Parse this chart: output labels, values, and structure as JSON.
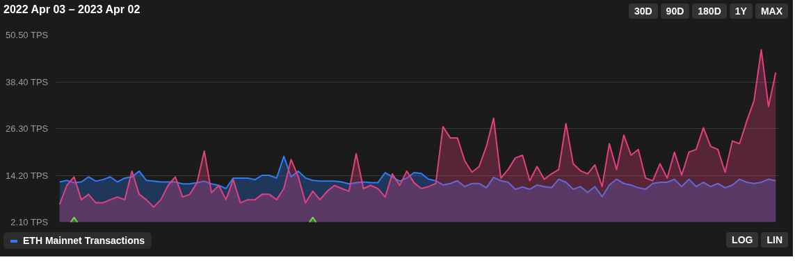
{
  "chart_data": {
    "type": "area",
    "title": "2022 Apr 03 – 2023 Apr 02",
    "categories": [
      null,
      null,
      null,
      null,
      null,
      null,
      null,
      null,
      null,
      null,
      null,
      null,
      null,
      null,
      null,
      null,
      null,
      null,
      null,
      null,
      null,
      null,
      null,
      null,
      null,
      null,
      null,
      null,
      null,
      null,
      null,
      null,
      null,
      null,
      null,
      null,
      null,
      null,
      null,
      null,
      null,
      null,
      null,
      null,
      null,
      null,
      null,
      null,
      null,
      null,
      null,
      null,
      null,
      null,
      null,
      null,
      null,
      null,
      null,
      null,
      null,
      null,
      null,
      null,
      null,
      null,
      null,
      null,
      null,
      null,
      null,
      null,
      null,
      null,
      null,
      null,
      null,
      null,
      null,
      null,
      null,
      null,
      null,
      null,
      null,
      null,
      null,
      null,
      null,
      null,
      null,
      null,
      null,
      null,
      null,
      null,
      null,
      null,
      null,
      null
    ],
    "series": [
      {
        "color": "#2f7cf6",
        "name": "ETH Mainnet Transactions",
        "values": [
          12.5,
          12.9,
          12.3,
          12.5,
          13.8,
          12.7,
          13.1,
          13.8,
          12.5,
          13.5,
          13.8,
          15.3,
          12.9,
          12.7,
          12.5,
          12.5,
          12.5,
          12.0,
          12.0,
          12.3,
          12.7,
          12.0,
          11.6,
          10.8,
          13.5,
          13.5,
          13.5,
          13.1,
          14.2,
          14.2,
          13.5,
          19.1,
          13.8,
          15.3,
          13.5,
          12.9,
          12.7,
          12.7,
          12.7,
          12.5,
          12.0,
          12.3,
          12.5,
          12.3,
          12.3,
          14.9,
          13.8,
          12.7,
          13.5,
          14.9,
          14.7,
          13.2,
          12.8,
          11.7,
          12.1,
          12.8,
          11.3,
          12.1,
          12.1,
          11.0,
          13.7,
          12.8,
          12.4,
          10.6,
          11.2,
          10.6,
          11.7,
          11.3,
          11.0,
          13.2,
          12.4,
          10.6,
          11.3,
          9.8,
          11.3,
          8.7,
          11.7,
          13.2,
          12.1,
          11.7,
          11.0,
          10.6,
          12.1,
          12.4,
          12.4,
          13.2,
          11.3,
          13.2,
          11.3,
          12.4,
          11.3,
          12.1,
          11.0,
          11.7,
          13.2,
          12.4,
          12.1,
          12.4,
          13.2,
          12.8
        ]
      },
      {
        "color": "#e2407e",
        "values": [
          6.7,
          11.6,
          13.8,
          7.9,
          9.3,
          7.1,
          7.1,
          7.9,
          8.6,
          7.9,
          15.3,
          9.3,
          7.9,
          6.0,
          7.9,
          11.6,
          13.8,
          8.6,
          9.3,
          12.3,
          20.5,
          9.7,
          11.6,
          7.9,
          13.1,
          7.1,
          7.9,
          7.9,
          9.3,
          9.3,
          7.9,
          10.8,
          18.3,
          13.8,
          7.1,
          10.1,
          7.9,
          10.1,
          11.6,
          10.8,
          10.1,
          19.8,
          10.8,
          11.6,
          10.8,
          8.6,
          14.6,
          11.6,
          15.3,
          12.3,
          10.8,
          11.3,
          12.1,
          26.8,
          23.9,
          23.9,
          18.0,
          15.0,
          16.5,
          21.7,
          29.0,
          13.5,
          15.7,
          18.7,
          19.4,
          12.8,
          16.5,
          13.2,
          14.6,
          15.7,
          27.6,
          17.2,
          15.4,
          14.6,
          16.9,
          11.3,
          22.4,
          15.7,
          24.6,
          19.4,
          20.9,
          13.5,
          12.8,
          17.2,
          13.5,
          20.2,
          14.3,
          20.2,
          20.9,
          26.5,
          21.7,
          20.9,
          15.0,
          23.1,
          22.4,
          28.3,
          33.5,
          46.7,
          32.0,
          40.8
        ]
      },
      {
        "type": "scatter",
        "color": "#6fd64a",
        "marker": "diamond",
        "values": [
          null,
          null,
          2.1,
          null,
          null,
          null,
          null,
          null,
          null,
          null,
          null,
          null,
          null,
          null,
          null,
          null,
          null,
          null,
          null,
          null,
          null,
          null,
          null,
          null,
          null,
          null,
          null,
          null,
          null,
          null,
          null,
          null,
          null,
          null,
          null,
          2.1,
          null,
          null,
          null,
          null,
          null,
          null,
          null,
          null,
          null,
          null,
          null,
          null,
          null,
          null,
          null,
          null,
          null,
          null,
          null,
          null,
          null,
          null,
          null,
          null,
          null,
          null,
          null,
          null,
          null,
          null,
          null,
          null,
          null,
          null,
          null,
          null,
          null,
          null,
          null,
          null,
          null,
          null,
          null,
          null,
          null,
          null,
          null,
          null,
          null,
          null,
          null,
          null,
          null,
          null,
          null,
          null,
          null,
          null,
          null,
          null,
          null,
          null,
          null,
          null
        ]
      }
    ],
    "ylim": [
      2.1,
      50.5
    ],
    "yticks": [
      {
        "value": 2.1,
        "label": "2.10 TPS"
      },
      {
        "value": 14.2,
        "label": "14.20 TPS"
      },
      {
        "value": 26.3,
        "label": "26.30 TPS"
      },
      {
        "value": 38.4,
        "label": "38.40 TPS"
      },
      {
        "value": 50.5,
        "label": "50.50 TPS"
      }
    ],
    "tick_labels": "y",
    "grid": "y",
    "legend": "bottom left",
    "annotations": [
      "30D",
      "90D",
      "180D",
      "1Y",
      "MAX",
      "LOG",
      "LIN"
    ]
  }
}
